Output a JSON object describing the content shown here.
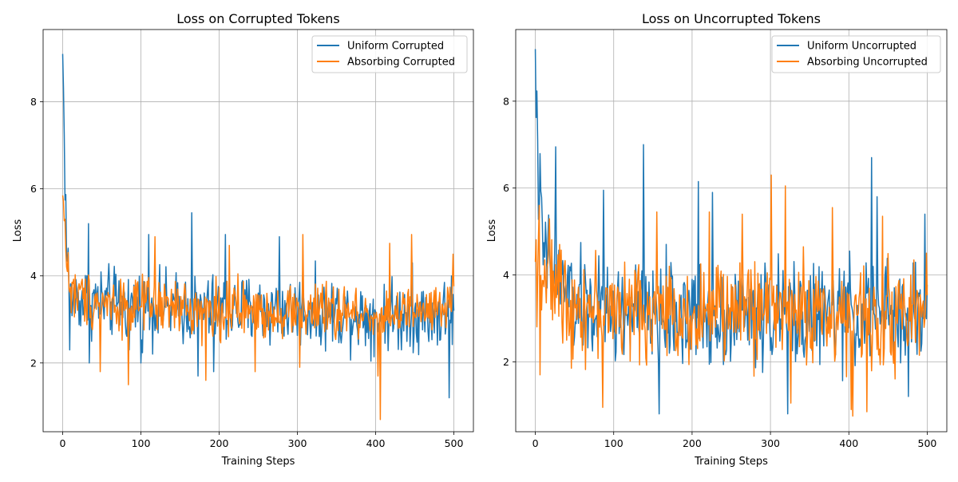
{
  "chart_data": [
    {
      "type": "line",
      "title": "Loss on Corrupted Tokens",
      "xlabel": "Training Steps",
      "ylabel": "Loss",
      "xlim": [
        -25,
        525
      ],
      "ylim": [
        0.42,
        9.66
      ],
      "xticks": [
        0,
        100,
        200,
        300,
        400,
        500
      ],
      "yticks": [
        2,
        4,
        6,
        8
      ],
      "grid": true,
      "legend_position": "top-right",
      "series": [
        {
          "name": "Uniform Corrupted",
          "color": "#1f77b4",
          "start": 9.1,
          "levels": [
            [
              0,
              9.1
            ],
            [
              5,
              4.6
            ],
            [
              10,
              3.5
            ],
            [
              50,
              3.4
            ],
            [
              100,
              3.3
            ],
            [
              200,
              3.2
            ],
            [
              300,
              3.2
            ],
            [
              400,
              3.1
            ],
            [
              500,
              3.1
            ]
          ],
          "spread": 0.75,
          "highlights": [
            [
              9,
              2.3
            ],
            [
              33,
              5.2
            ],
            [
              34,
              2.0
            ],
            [
              85,
              2.3
            ],
            [
              100,
              2.0
            ],
            [
              110,
              4.95
            ],
            [
              165,
              5.45
            ],
            [
              173,
              1.7
            ],
            [
              193,
              1.8
            ],
            [
              208,
              4.95
            ],
            [
              277,
              4.9
            ],
            [
              307,
              4.2
            ],
            [
              447,
              4.3
            ],
            [
              494,
              1.2
            ],
            [
              497,
              4.0
            ],
            [
              500,
              3.2
            ]
          ]
        },
        {
          "name": "Absorbing Corrupted",
          "color": "#ff7f0e",
          "start": 5.85,
          "levels": [
            [
              0,
              5.85
            ],
            [
              5,
              4.5
            ],
            [
              10,
              3.6
            ],
            [
              50,
              3.4
            ],
            [
              100,
              3.3
            ],
            [
              200,
              3.2
            ],
            [
              300,
              3.2
            ],
            [
              400,
              3.1
            ],
            [
              500,
              3.2
            ]
          ],
          "spread": 0.6,
          "highlights": [
            [
              3,
              5.3
            ],
            [
              6,
              4.1
            ],
            [
              48,
              1.8
            ],
            [
              84,
              1.5
            ],
            [
              118,
              4.9
            ],
            [
              183,
              1.6
            ],
            [
              213,
              4.7
            ],
            [
              246,
              1.8
            ],
            [
              303,
              1.9
            ],
            [
              307,
              4.95
            ],
            [
              403,
              1.7
            ],
            [
              406,
              0.7
            ],
            [
              418,
              4.75
            ],
            [
              446,
              4.95
            ],
            [
              499,
              4.5
            ]
          ]
        }
      ]
    },
    {
      "type": "line",
      "title": "Loss on Uncorrupted Tokens",
      "xlabel": "Training Steps",
      "ylabel": "Loss",
      "xlim": [
        -25,
        525
      ],
      "ylim": [
        0.39,
        9.65
      ],
      "xticks": [
        0,
        100,
        200,
        300,
        400,
        500
      ],
      "yticks": [
        2,
        4,
        6,
        8
      ],
      "grid": true,
      "legend_position": "top-right",
      "series": [
        {
          "name": "Uniform Uncorrupted",
          "color": "#1f77b4",
          "start": 9.2,
          "levels": [
            [
              0,
              9.2
            ],
            [
              3,
              6.5
            ],
            [
              10,
              4.5
            ],
            [
              50,
              3.3
            ],
            [
              100,
              3.1
            ],
            [
              200,
              3.1
            ],
            [
              300,
              3.1
            ],
            [
              400,
              3.1
            ],
            [
              500,
              3.1
            ]
          ],
          "spread": 1.1,
          "highlights": [
            [
              3,
              7.1
            ],
            [
              26,
              6.95
            ],
            [
              87,
              5.95
            ],
            [
              138,
              7.0
            ],
            [
              158,
              0.8
            ],
            [
              208,
              6.15
            ],
            [
              226,
              5.9
            ],
            [
              322,
              0.8
            ],
            [
              429,
              6.7
            ],
            [
              436,
              5.8
            ],
            [
              476,
              1.2
            ],
            [
              497,
              5.4
            ]
          ]
        },
        {
          "name": "Absorbing Uncorrupted",
          "color": "#ff7f0e",
          "start": 4.3,
          "levels": [
            [
              0,
              4.3
            ],
            [
              50,
              3.3
            ],
            [
              100,
              3.2
            ],
            [
              200,
              3.1
            ],
            [
              300,
              3.3
            ],
            [
              400,
              3.0
            ],
            [
              500,
              3.1
            ]
          ],
          "spread": 1.05,
          "highlights": [
            [
              5,
              5.6
            ],
            [
              6,
              1.7
            ],
            [
              86,
              0.95
            ],
            [
              155,
              5.45
            ],
            [
              222,
              5.45
            ],
            [
              264,
              5.4
            ],
            [
              301,
              6.3
            ],
            [
              319,
              6.05
            ],
            [
              326,
              1.05
            ],
            [
              379,
              5.55
            ],
            [
              403,
              0.9
            ],
            [
              405,
              0.75
            ],
            [
              423,
              0.85
            ],
            [
              443,
              5.35
            ],
            [
              499,
              4.5
            ]
          ]
        }
      ]
    }
  ]
}
